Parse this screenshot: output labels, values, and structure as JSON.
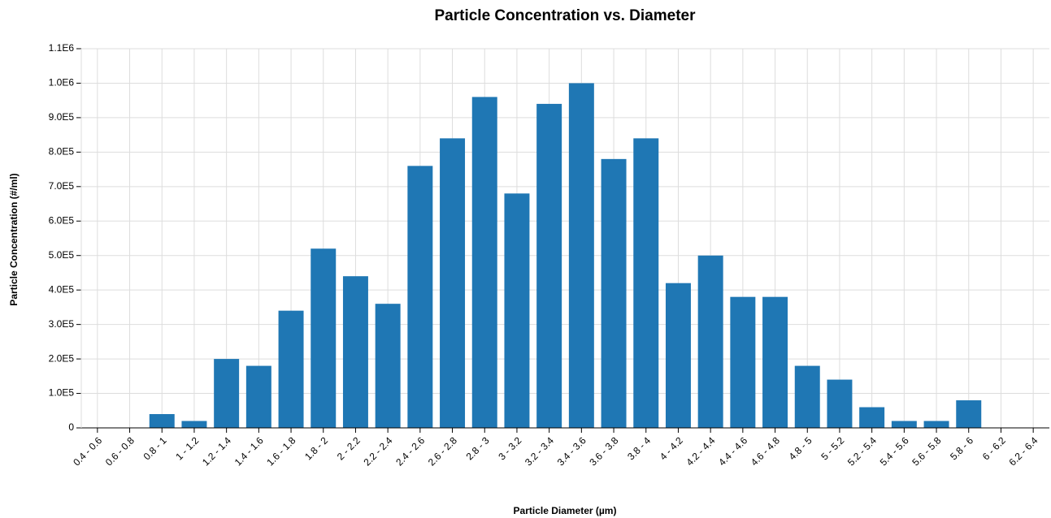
{
  "chart_data": {
    "type": "bar",
    "title": "Particle Concentration vs. Diameter",
    "x_label": "Particle Diameter (µm)",
    "y_label": "Particle Concentration (#/ml)",
    "categories": [
      "0.4 - 0.6",
      "0.6 - 0.8",
      "0.8 - 1",
      "1 - 1.2",
      "1.2 - 1.4",
      "1.4 - 1.6",
      "1.6 - 1.8",
      "1.8 - 2",
      "2 - 2.2",
      "2.2 - 2.4",
      "2.4 - 2.6",
      "2.6 - 2.8",
      "2.8 - 3",
      "3 - 3.2",
      "3.2 - 3.4",
      "3.4 - 3.6",
      "3.6 - 3.8",
      "3.8 - 4",
      "4 - 4.2",
      "4.2 - 4.4",
      "4.4 - 4.6",
      "4.6 - 4.8",
      "4.8 - 5",
      "5 - 5.2",
      "5.2 - 5.4",
      "5.4 - 5.6",
      "5.6 - 5.8",
      "5.8 - 6",
      "6 - 6.2",
      "6.2 - 6.4"
    ],
    "values": [
      0,
      0,
      40000,
      20000,
      200000,
      180000,
      340000,
      520000,
      440000,
      360000,
      760000,
      840000,
      960000,
      680000,
      940000,
      1000000,
      780000,
      840000,
      420000,
      500000,
      380000,
      380000,
      180000,
      140000,
      60000,
      20000,
      20000,
      80000,
      0,
      0
    ],
    "color": "#1f77b4",
    "ylim": [
      0,
      1100000
    ],
    "yticks": [
      0,
      {
        "value": 100000,
        "label": "1.0E5"
      },
      {
        "value": 200000,
        "label": "2.0E5"
      },
      {
        "value": 300000,
        "label": "3.0E5"
      },
      {
        "value": 400000,
        "label": "4.0E5"
      },
      {
        "value": 500000,
        "label": "5.0E5"
      },
      {
        "value": 600000,
        "label": "6.0E5"
      },
      {
        "value": 700000,
        "label": "7.0E5"
      },
      {
        "value": 800000,
        "label": "8.0E5"
      },
      {
        "value": 900000,
        "label": "9.0E5"
      },
      {
        "value": 1000000,
        "label": "1.0E6"
      },
      {
        "value": 1100000,
        "label": "1.1E6"
      }
    ],
    "grid": true
  }
}
